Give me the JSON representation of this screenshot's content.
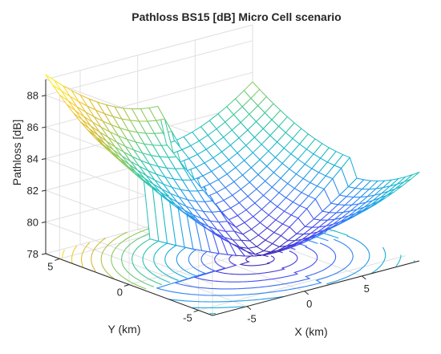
{
  "chart_data": {
    "type": "surface3d",
    "title": "Pathloss BS15 [dB] Micro Cell scenario",
    "xlabel": "X (km)",
    "ylabel": "Y (km)",
    "zlabel": "Pathloss [dB]",
    "xlim": [
      -8,
      10
    ],
    "ylim": [
      -6,
      6
    ],
    "zlim": [
      78,
      89
    ],
    "x_ticks": [
      "-5",
      "0",
      "5"
    ],
    "x_tick_values": [
      -5,
      0,
      5
    ],
    "y_ticks": [
      "5",
      "0",
      "-5"
    ],
    "y_tick_values": [
      5,
      0,
      -5
    ],
    "z_ticks": [
      "78",
      "80",
      "82",
      "84",
      "86",
      "88"
    ],
    "z_tick_values": [
      78,
      80,
      82,
      84,
      86,
      88
    ],
    "grid": true,
    "colormap": "parula",
    "surface_min": {
      "x": 2,
      "y": -1,
      "z": 78.3
    },
    "surface_corners": {
      "x_min_y_max": 89.3,
      "x_max_y_max": 85.4,
      "x_max_y_min": 83.6,
      "x_min_y_min": 83.0
    },
    "mesh_size": [
      24,
      24
    ],
    "contour_levels": [
      78.6,
      79.2,
      79.8,
      80.4,
      81,
      81.6,
      82.2,
      82.8,
      83.4,
      84,
      84.6,
      85.2,
      85.8,
      86.4,
      87,
      87.6,
      88.2
    ]
  },
  "colors": {
    "colormap_stops": [
      "#3E26A8",
      "#4748F2",
      "#2E87F7",
      "#14B6D3",
      "#2FC7A0",
      "#8CCB5E",
      "#D9BA2E",
      "#FCCE2E",
      "#F9FB15"
    ],
    "axis_line": "#262626",
    "grid_line": "#DFDFDF",
    "background": "#FFFFFF"
  }
}
